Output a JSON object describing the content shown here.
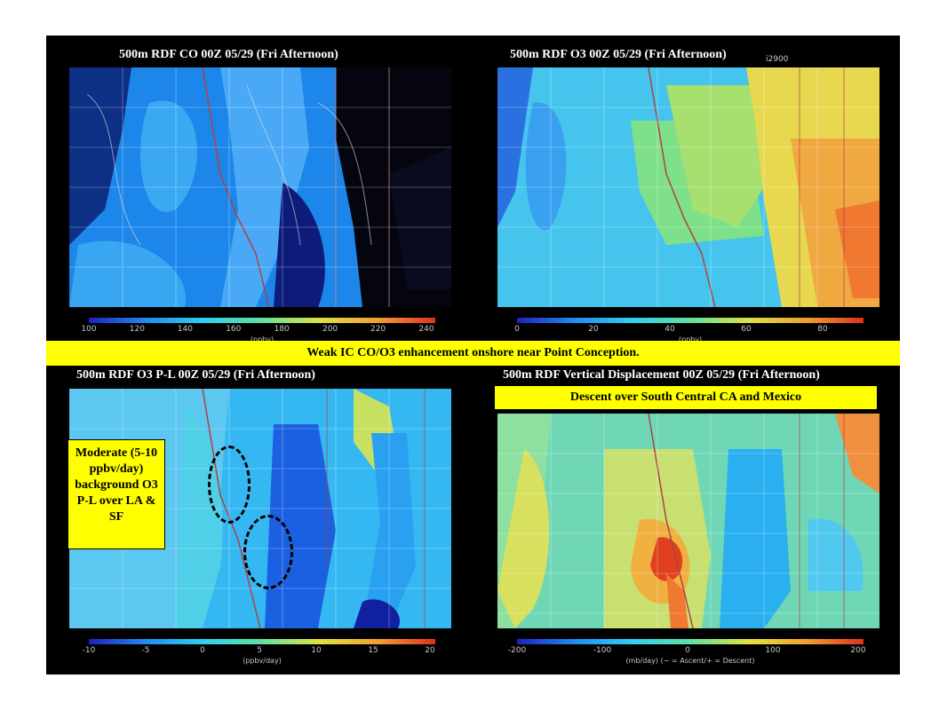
{
  "panels": [
    {
      "id": "co",
      "title": "500m RDF CO  00Z 05/29 (Fri Afternoon)",
      "colorbar": {
        "ticks": [
          "100",
          "120",
          "140",
          "160",
          "180",
          "200",
          "220",
          "240"
        ],
        "unit": "(ppbv)"
      },
      "bg": "#1f8cf0",
      "overlay_label": ""
    },
    {
      "id": "o3",
      "title": "500m RDF O3 00Z 05/29 (Fri Afternoon)",
      "colorbar": {
        "ticks": [
          "0",
          "20",
          "40",
          "60",
          "80"
        ],
        "unit": "(ppbv)"
      },
      "bg": "#45c5ee",
      "overlay_label": "i2900"
    },
    {
      "id": "o3pl",
      "title": "500m RDF O3 P-L  00Z 05/29 (Fri Afternoon)",
      "colorbar": {
        "ticks": [
          "-10",
          "-5",
          "0",
          "5",
          "10",
          "15",
          "20"
        ],
        "unit": "(ppbv/day)"
      },
      "bg": "#35b8f2",
      "overlay_label": ""
    },
    {
      "id": "vd",
      "title": "500m RDF Vertical Displacement 00Z 05/29 (Fri Afternoon)",
      "colorbar": {
        "ticks": [
          "-200",
          "-100",
          "0",
          "100",
          "200"
        ],
        "unit": "(mb/day) (− = Ascent/+ = Descent)"
      },
      "bg": "#6fd7b6",
      "overlay_label": ""
    }
  ],
  "banner": "Weak IC CO/O3 enhancement onshore near Point Conception.",
  "note": "Moderate (5-10 ppbv/day) background O3 P-L over LA & SF",
  "descent_label": "Descent over South Central CA and Mexico",
  "colors": {
    "highlight": "#ffff00",
    "background": "#000000",
    "text": "#ffffff"
  }
}
